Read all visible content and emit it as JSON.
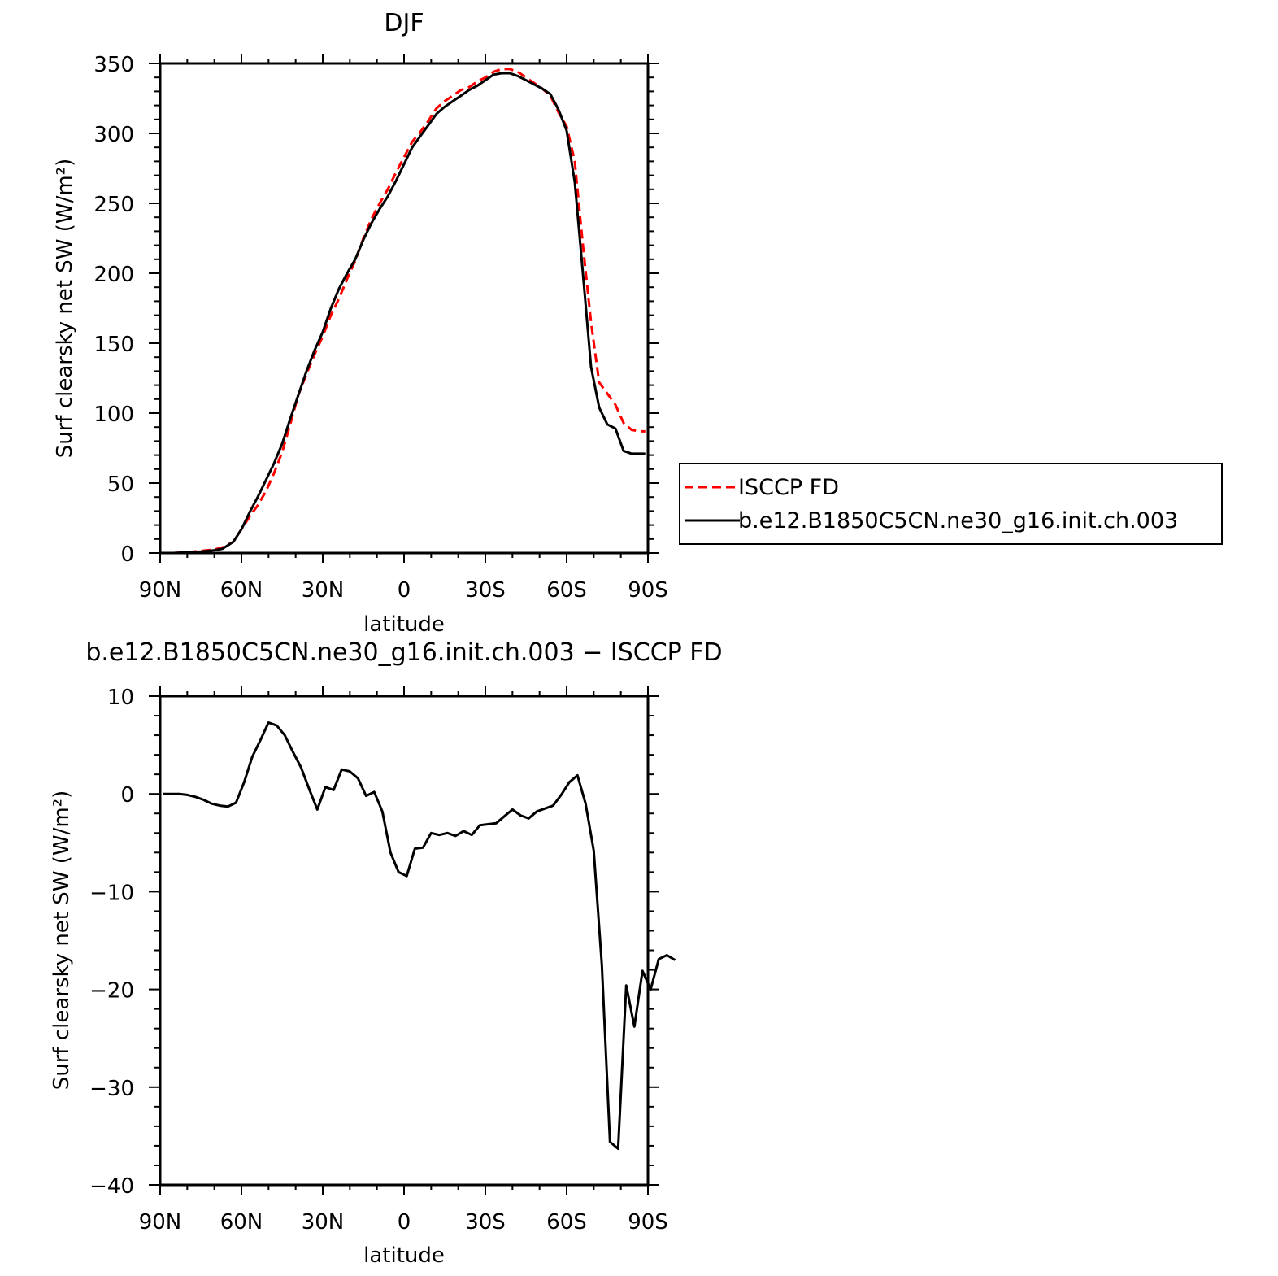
{
  "chart_data": [
    {
      "type": "line",
      "title": "DJF",
      "xlabel": "latitude",
      "ylabel": "Surf clearsky net SW (W/m²)",
      "xlim": [
        90,
        -90
      ],
      "ylim": [
        0,
        350
      ],
      "x_ticks": [
        {
          "value": 90,
          "label": "90N"
        },
        {
          "value": 60,
          "label": "60N"
        },
        {
          "value": 30,
          "label": "30N"
        },
        {
          "value": 0,
          "label": "0"
        },
        {
          "value": -30,
          "label": "30S"
        },
        {
          "value": -60,
          "label": "60S"
        },
        {
          "value": -90,
          "label": "90S"
        }
      ],
      "y_ticks": [
        0,
        50,
        100,
        150,
        200,
        250,
        300,
        350
      ],
      "legend_position": "right",
      "series": [
        {
          "name": "ISCCP FD",
          "color": "#ff0000",
          "dash": "dashed",
          "points": [
            [
              90,
              0
            ],
            [
              85,
              0
            ],
            [
              80,
              0.5
            ],
            [
              75,
              1.5
            ],
            [
              70,
              2.5
            ],
            [
              67,
              4
            ],
            [
              63,
              8
            ],
            [
              60,
              17
            ],
            [
              57,
              26
            ],
            [
              54,
              34
            ],
            [
              51,
              44
            ],
            [
              48,
              57
            ],
            [
              45,
              72
            ],
            [
              42,
              92
            ],
            [
              39,
              113
            ],
            [
              36,
              128
            ],
            [
              33,
              142
            ],
            [
              30,
              155
            ],
            [
              27,
              170
            ],
            [
              24,
              182
            ],
            [
              21,
              196
            ],
            [
              18,
              209
            ],
            [
              15,
              225
            ],
            [
              12,
              239
            ],
            [
              9,
              250
            ],
            [
              6,
              260
            ],
            [
              3,
              272
            ],
            [
              0,
              283
            ],
            [
              -3,
              294
            ],
            [
              -6,
              301
            ],
            [
              -9,
              309
            ],
            [
              -12,
              318
            ],
            [
              -15,
              323
            ],
            [
              -18,
              327
            ],
            [
              -21,
              331
            ],
            [
              -24,
              333
            ],
            [
              -27,
              337
            ],
            [
              -30,
              340
            ],
            [
              -33,
              344
            ],
            [
              -36,
              346
            ],
            [
              -39,
              346
            ],
            [
              -42,
              344
            ],
            [
              -45,
              340
            ],
            [
              -48,
              336
            ],
            [
              -51,
              332
            ],
            [
              -54,
              327
            ],
            [
              -57,
              315
            ],
            [
              -60,
              305
            ],
            [
              -63,
              280
            ],
            [
              -66,
              220
            ],
            [
              -69,
              165
            ],
            [
              -72,
              122
            ],
            [
              -75,
              114
            ],
            [
              -78,
              106
            ],
            [
              -81,
              93
            ],
            [
              -84,
              88
            ],
            [
              -87,
              87
            ],
            [
              -89,
              87
            ]
          ]
        },
        {
          "name": "b.e12.B1850C5CN.ne30_g16.init.ch.003",
          "color": "#000000",
          "dash": "solid",
          "points": [
            [
              90,
              0
            ],
            [
              85,
              0
            ],
            [
              80,
              0.5
            ],
            [
              75,
              1
            ],
            [
              70,
              2
            ],
            [
              67,
              3
            ],
            [
              63,
              8
            ],
            [
              60,
              17
            ],
            [
              57,
              29
            ],
            [
              54,
              40
            ],
            [
              51,
              52
            ],
            [
              48,
              64
            ],
            [
              45,
              78
            ],
            [
              42,
              96
            ],
            [
              39,
              113
            ],
            [
              36,
              130
            ],
            [
              33,
              145
            ],
            [
              30,
              158
            ],
            [
              27,
              175
            ],
            [
              24,
              189
            ],
            [
              21,
              200
            ],
            [
              18,
              210
            ],
            [
              15,
              224
            ],
            [
              12,
              236
            ],
            [
              9,
              246
            ],
            [
              6,
              255
            ],
            [
              3,
              266
            ],
            [
              0,
              278
            ],
            [
              -3,
              290
            ],
            [
              -6,
              298
            ],
            [
              -9,
              306
            ],
            [
              -12,
              314
            ],
            [
              -15,
              319
            ],
            [
              -18,
              323
            ],
            [
              -21,
              327
            ],
            [
              -24,
              331
            ],
            [
              -27,
              334
            ],
            [
              -30,
              338
            ],
            [
              -33,
              342
            ],
            [
              -36,
              343
            ],
            [
              -39,
              343
            ],
            [
              -42,
              341
            ],
            [
              -45,
              338
            ],
            [
              -48,
              335
            ],
            [
              -51,
              332
            ],
            [
              -54,
              328
            ],
            [
              -57,
              317
            ],
            [
              -60,
              302
            ],
            [
              -63,
              265
            ],
            [
              -66,
              200
            ],
            [
              -69,
              133
            ],
            [
              -72,
              104
            ],
            [
              -75,
              92
            ],
            [
              -78,
              89
            ],
            [
              -81,
              73
            ],
            [
              -84,
              71
            ],
            [
              -87,
              71
            ],
            [
              -89,
              71
            ]
          ]
        }
      ]
    },
    {
      "type": "line",
      "title": "b.e12.B1850C5CN.ne30_g16.init.ch.003 − ISCCP FD",
      "xlabel": "latitude",
      "ylabel": "Surf clearsky net SW (W/m²)",
      "xlim": [
        90,
        -90
      ],
      "ylim": [
        -40,
        10
      ],
      "x_ticks": [
        {
          "value": 90,
          "label": "90N"
        },
        {
          "value": 60,
          "label": "60N"
        },
        {
          "value": 30,
          "label": "30N"
        },
        {
          "value": 0,
          "label": "0"
        },
        {
          "value": -30,
          "label": "30S"
        },
        {
          "value": -60,
          "label": "60S"
        },
        {
          "value": -90,
          "label": "90S"
        }
      ],
      "y_ticks": [
        -40,
        -30,
        -20,
        -10,
        0,
        10
      ],
      "y_tick_labels": [
        "−40",
        "−30",
        "−20",
        "−10",
        "0",
        "10"
      ],
      "series": [
        {
          "color": "#000000",
          "dash": "solid",
          "points": [
            [
              89,
              0
            ],
            [
              86,
              0
            ],
            [
              83,
              0
            ],
            [
              80,
              -0.1
            ],
            [
              77,
              -0.3
            ],
            [
              74,
              -0.6
            ],
            [
              71,
              -1.0
            ],
            [
              68,
              -1.2
            ],
            [
              65,
              -1.3
            ],
            [
              62,
              -0.9
            ],
            [
              59,
              1.2
            ],
            [
              56,
              3.8
            ],
            [
              53,
              5.5
            ],
            [
              50,
              7.3
            ],
            [
              47,
              7.0
            ],
            [
              44,
              6.0
            ],
            [
              41,
              4.3
            ],
            [
              38,
              2.7
            ],
            [
              35,
              0.5
            ],
            [
              32,
              -1.6
            ],
            [
              29,
              0.7
            ],
            [
              26,
              0.4
            ],
            [
              23,
              2.5
            ],
            [
              20,
              2.3
            ],
            [
              17,
              1.6
            ],
            [
              14,
              -0.2
            ],
            [
              11,
              0.2
            ],
            [
              8,
              -1.8
            ],
            [
              5,
              -6.0
            ],
            [
              2,
              -8.0
            ],
            [
              -1,
              -8.4
            ],
            [
              -4,
              -5.6
            ],
            [
              -7,
              -5.5
            ],
            [
              -10,
              -4.0
            ],
            [
              -13,
              -4.2
            ],
            [
              -16,
              -4.0
            ],
            [
              -19,
              -4.3
            ],
            [
              -22,
              -3.8
            ],
            [
              -25,
              -4.2
            ],
            [
              -28,
              -3.2
            ],
            [
              -31,
              -3.1
            ],
            [
              -34,
              -3.0
            ],
            [
              -37,
              -2.3
            ],
            [
              -40,
              -1.6
            ],
            [
              -43,
              -2.2
            ],
            [
              -46,
              -2.5
            ],
            [
              -49,
              -1.8
            ],
            [
              -52,
              -1.5
            ],
            [
              -55,
              -1.2
            ],
            [
              -58,
              -0.1
            ],
            [
              -61,
              1.2
            ],
            [
              -64,
              1.9
            ],
            [
              -67,
              -1.0
            ],
            [
              -70,
              -5.8
            ],
            [
              -73,
              -17.5
            ],
            [
              -76,
              -35.6
            ],
            [
              -79,
              -36.3
            ],
            [
              -82,
              -19.6
            ],
            [
              -85,
              -23.8
            ],
            [
              -88,
              -18.1
            ],
            [
              -91,
              -20.0
            ],
            [
              -94,
              -16.9
            ],
            [
              -97,
              -16.5
            ],
            [
              -100,
              -17.0
            ]
          ]
        }
      ]
    }
  ]
}
